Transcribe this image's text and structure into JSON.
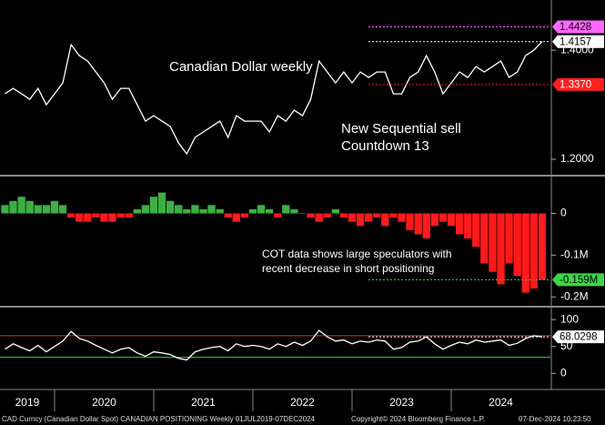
{
  "chart_data": [
    {
      "type": "line",
      "color": "#ffffff",
      "x": [
        2019.5,
        2019.583,
        2019.667,
        2019.75,
        2019.833,
        2019.917,
        2020.0,
        2020.083,
        2020.167,
        2020.25,
        2020.333,
        2020.417,
        2020.5,
        2020.583,
        2020.667,
        2020.75,
        2020.833,
        2020.917,
        2021.0,
        2021.083,
        2021.167,
        2021.25,
        2021.333,
        2021.417,
        2021.5,
        2021.583,
        2021.667,
        2021.75,
        2021.833,
        2021.917,
        2022.0,
        2022.083,
        2022.167,
        2022.25,
        2022.333,
        2022.417,
        2022.5,
        2022.583,
        2022.667,
        2022.75,
        2022.833,
        2022.917,
        2023.0,
        2023.083,
        2023.167,
        2023.25,
        2023.333,
        2023.417,
        2023.5,
        2023.583,
        2023.667,
        2023.75,
        2023.833,
        2023.917,
        2024.0,
        2024.083,
        2024.167,
        2024.25,
        2024.333,
        2024.417,
        2024.5,
        2024.583,
        2024.667,
        2024.75,
        2024.833,
        2024.917
      ],
      "values": [
        1.32,
        1.33,
        1.32,
        1.31,
        1.33,
        1.3,
        1.32,
        1.34,
        1.41,
        1.39,
        1.38,
        1.36,
        1.34,
        1.31,
        1.33,
        1.33,
        1.3,
        1.27,
        1.28,
        1.27,
        1.26,
        1.23,
        1.21,
        1.24,
        1.25,
        1.26,
        1.27,
        1.24,
        1.28,
        1.27,
        1.27,
        1.27,
        1.25,
        1.28,
        1.27,
        1.29,
        1.28,
        1.31,
        1.38,
        1.36,
        1.34,
        1.36,
        1.34,
        1.36,
        1.35,
        1.36,
        1.36,
        1.32,
        1.32,
        1.35,
        1.36,
        1.39,
        1.36,
        1.32,
        1.34,
        1.36,
        1.35,
        1.37,
        1.36,
        1.37,
        1.38,
        1.35,
        1.36,
        1.39,
        1.4,
        1.4157
      ],
      "xlim": [
        2019.45,
        2025.0
      ],
      "ylim": [
        1.175,
        1.492
      ],
      "yticks": [
        {
          "value": 1.2,
          "label": "1.2000"
        },
        {
          "value": 1.4,
          "label": "1.4000"
        }
      ],
      "levels": [
        {
          "value": 1.4428,
          "label": "1.4428",
          "color": "#ff66ff"
        },
        {
          "value": 1.4157,
          "label": "1.4157",
          "color": "#ffffff"
        },
        {
          "value": 1.337,
          "label": "1.3370",
          "color": "#ff2020"
        }
      ],
      "annotations": [
        "Canadian Dollar weekly",
        "New Sequential sell",
        "Countdown 13"
      ]
    },
    {
      "type": "bar",
      "colors": {
        "positive": "#3cb043",
        "negative": "#ff1a1a"
      },
      "x": [
        2019.5,
        2019.583,
        2019.667,
        2019.75,
        2019.833,
        2019.917,
        2020.0,
        2020.083,
        2020.167,
        2020.25,
        2020.333,
        2020.417,
        2020.5,
        2020.583,
        2020.667,
        2020.75,
        2020.833,
        2020.917,
        2021.0,
        2021.083,
        2021.167,
        2021.25,
        2021.333,
        2021.417,
        2021.5,
        2021.583,
        2021.667,
        2021.75,
        2021.833,
        2021.917,
        2022.0,
        2022.083,
        2022.167,
        2022.25,
        2022.333,
        2022.417,
        2022.5,
        2022.583,
        2022.667,
        2022.75,
        2022.833,
        2022.917,
        2023.0,
        2023.083,
        2023.167,
        2023.25,
        2023.333,
        2023.417,
        2023.5,
        2023.583,
        2023.667,
        2023.75,
        2023.833,
        2023.917,
        2024.0,
        2024.083,
        2024.167,
        2024.25,
        2024.333,
        2024.417,
        2024.5,
        2024.583,
        2024.667,
        2024.75,
        2024.833,
        2024.917
      ],
      "values": [
        0.02,
        0.03,
        0.04,
        0.03,
        0.02,
        0.02,
        0.03,
        0.02,
        -0.01,
        -0.02,
        -0.02,
        -0.01,
        -0.02,
        -0.02,
        -0.01,
        -0.01,
        0.01,
        0.02,
        0.04,
        0.05,
        0.03,
        0.02,
        0.01,
        0.02,
        0.01,
        0.02,
        0.01,
        -0.01,
        -0.02,
        -0.01,
        0.01,
        0.02,
        0.01,
        -0.01,
        0.02,
        0.01,
        0,
        -0.01,
        -0.02,
        -0.01,
        0.01,
        -0.01,
        -0.02,
        -0.03,
        -0.02,
        -0.01,
        -0.03,
        -0.01,
        -0.02,
        -0.04,
        -0.05,
        -0.06,
        -0.03,
        -0.02,
        -0.03,
        -0.05,
        -0.06,
        -0.08,
        -0.12,
        -0.14,
        -0.17,
        -0.12,
        -0.15,
        -0.19,
        -0.18,
        -0.159
      ],
      "xlim": [
        2019.45,
        2025.0
      ],
      "ylim": [
        -0.217,
        0.084
      ],
      "yticks": [
        0,
        {
          "value": -0.1,
          "label": "-0.1M"
        },
        {
          "value": -0.2,
          "label": "-0.2M"
        }
      ],
      "levels": [
        {
          "value": -0.159,
          "label": "-0.159M",
          "color": "#3cd64a"
        }
      ],
      "annotations": [
        "COT data shows large speculators with",
        "recent decrease in short positioning"
      ]
    },
    {
      "type": "line",
      "color": "#ffffff",
      "x": [
        2019.5,
        2019.583,
        2019.667,
        2019.75,
        2019.833,
        2019.917,
        2020.0,
        2020.083,
        2020.167,
        2020.25,
        2020.333,
        2020.417,
        2020.5,
        2020.583,
        2020.667,
        2020.75,
        2020.833,
        2020.917,
        2021.0,
        2021.083,
        2021.167,
        2021.25,
        2021.333,
        2021.417,
        2021.5,
        2021.583,
        2021.667,
        2021.75,
        2021.833,
        2021.917,
        2022.0,
        2022.083,
        2022.167,
        2022.25,
        2022.333,
        2022.417,
        2022.5,
        2022.583,
        2022.667,
        2022.75,
        2022.833,
        2022.917,
        2023.0,
        2023.083,
        2023.167,
        2023.25,
        2023.333,
        2023.417,
        2023.5,
        2023.583,
        2023.667,
        2023.75,
        2023.833,
        2023.917,
        2024.0,
        2024.083,
        2024.167,
        2024.25,
        2024.333,
        2024.417,
        2024.5,
        2024.583,
        2024.667,
        2024.75,
        2024.833,
        2024.917
      ],
      "values": [
        45,
        55,
        48,
        42,
        52,
        40,
        50,
        60,
        78,
        65,
        60,
        52,
        45,
        38,
        45,
        48,
        38,
        32,
        40,
        38,
        35,
        28,
        25,
        40,
        45,
        48,
        50,
        42,
        55,
        50,
        52,
        50,
        45,
        55,
        50,
        58,
        52,
        60,
        80,
        68,
        60,
        62,
        55,
        60,
        58,
        62,
        60,
        45,
        48,
        58,
        60,
        68,
        55,
        45,
        52,
        58,
        55,
        62,
        58,
        60,
        62,
        52,
        56,
        65,
        70,
        68.0298
      ],
      "xlim": [
        2019.45,
        2025.0
      ],
      "ylim": [
        -25,
        119
      ],
      "yticks": [
        0,
        50,
        100
      ],
      "lines": [
        {
          "value": 70,
          "color": "#e03030"
        },
        {
          "value": 30,
          "color": "#30c030"
        }
      ],
      "levels": [
        {
          "value": 68.0298,
          "label": "68.0298",
          "color": "#ffffff"
        }
      ],
      "xticks": [
        2019,
        2020,
        2021,
        2022,
        2023,
        2024
      ]
    }
  ],
  "footer": [
    "CAD Curncy (Canadian Dollar Spot) CANADIAN POSITIONING  Weekly 01JUL2019-07DEC2024",
    "Copyright© 2024 Bloomberg Finance L.P.",
    "07-Dec-2024 10:23:50"
  ]
}
